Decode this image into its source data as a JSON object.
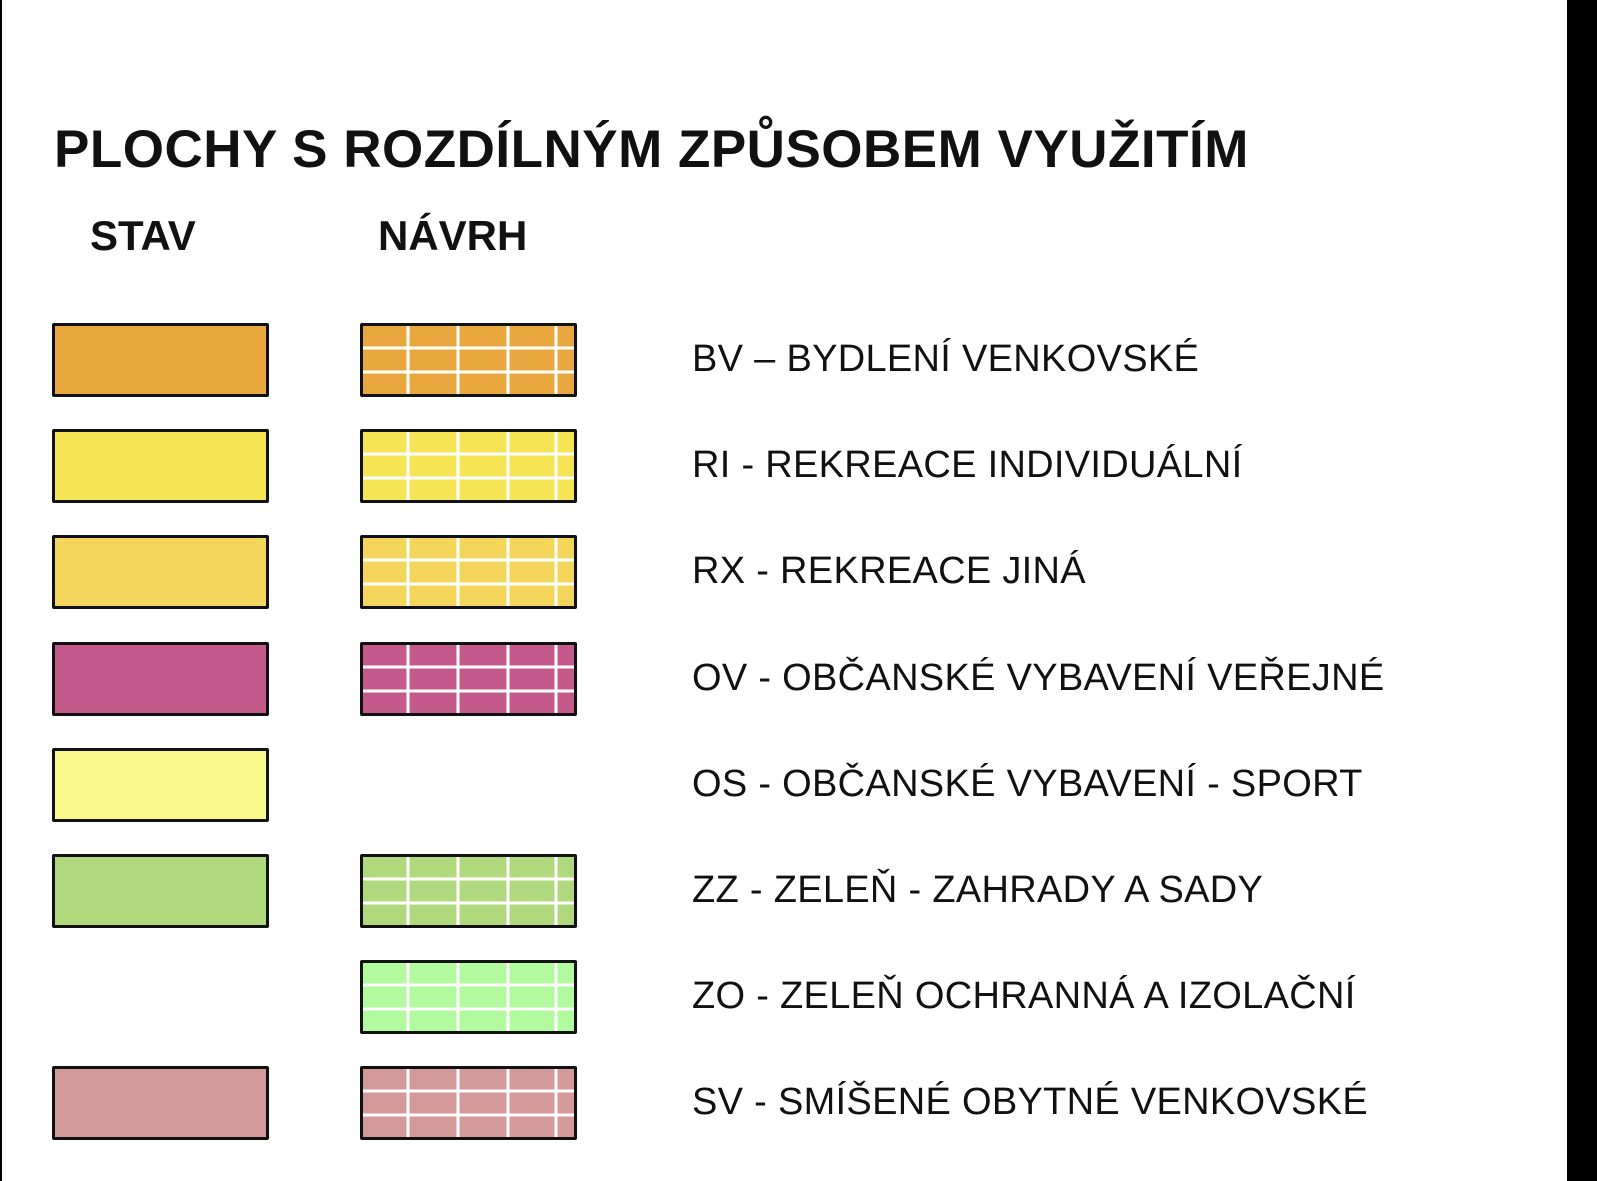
{
  "title": "PLOCHY S ROZDÍLNÝM ZPŮSOBEM VYUŽITÍM",
  "columns": {
    "stav": "STAV",
    "navrh": "NÁVRH"
  },
  "colors": {
    "border": "#111111",
    "grid_lines": "#ffffff"
  },
  "legend": [
    {
      "code": "BV",
      "label": "BV – BYDLENÍ VENKOVSKÉ",
      "color": "#e9a73f",
      "stav": true,
      "navrh": true
    },
    {
      "code": "RI",
      "label": "RI - REKREACE INDIVIDUÁLNÍ",
      "color": "#f5e454",
      "stav": true,
      "navrh": true
    },
    {
      "code": "RX",
      "label": "RX - REKREACE JINÁ",
      "color": "#f3d55b",
      "stav": true,
      "navrh": true
    },
    {
      "code": "OV",
      "label": "OV - OBČANSKÉ VYBAVENÍ VEŘEJNÉ",
      "color": "#c45a8c",
      "stav": true,
      "navrh": true
    },
    {
      "code": "OS",
      "label": "OS - OBČANSKÉ VYBAVENÍ - SPORT",
      "color": "#fafa8c",
      "stav": true,
      "navrh": false
    },
    {
      "code": "ZZ",
      "label": "ZZ - ZELEŇ - ZAHRADY A SADY",
      "color": "#b0d97e",
      "stav": true,
      "navrh": true
    },
    {
      "code": "ZO",
      "label": "ZO - ZELEŇ OCHRANNÁ A IZOLAČNÍ",
      "color": "#b2fa9e",
      "stav": false,
      "navrh": true
    },
    {
      "code": "SV",
      "label": "SV - SMÍŠENÉ OBYTNÉ VENKOVSKÉ",
      "color": "#d49a9a",
      "stav": true,
      "navrh": true
    }
  ]
}
